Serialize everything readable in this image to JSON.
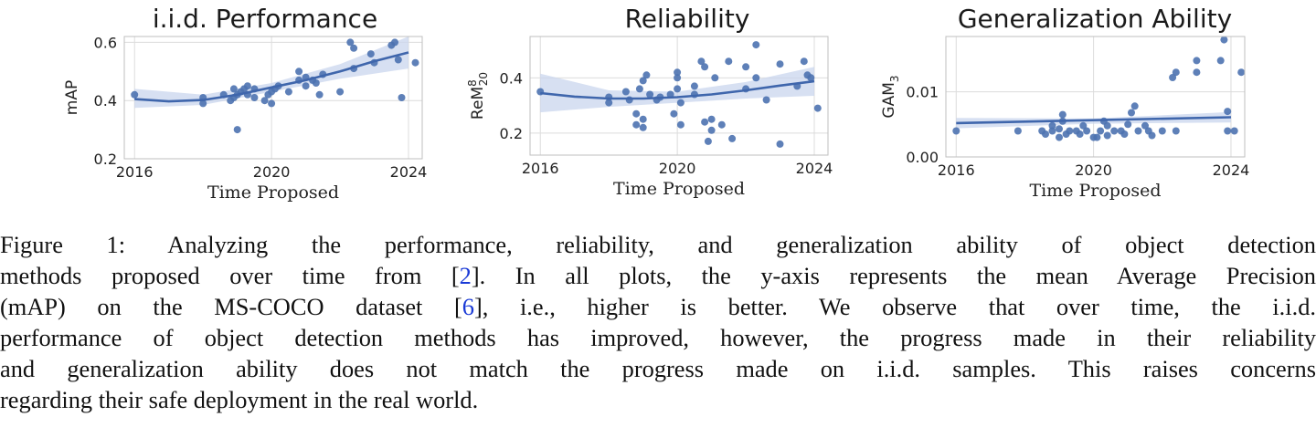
{
  "chart_data": [
    {
      "type": "scatter",
      "title": "i.i.d. Performance",
      "xlabel": "Time Proposed",
      "ylabel": "mAP",
      "xlim": [
        2015.7,
        2024.4
      ],
      "ylim": [
        0.2,
        0.62
      ],
      "xticks": [
        2016,
        2020,
        2024
      ],
      "xtick_labels": [
        "2016",
        "2020",
        "2024"
      ],
      "yticks": [
        0.2,
        0.4,
        0.6
      ],
      "ytick_labels": [
        "0.2",
        "0.4",
        "0.6"
      ],
      "grid": true,
      "fit": "quadratic",
      "fit_line": {
        "x": [
          2016,
          2017,
          2018,
          2019,
          2020,
          2021,
          2022,
          2023,
          2024
        ],
        "y": [
          0.405,
          0.397,
          0.402,
          0.42,
          0.445,
          0.47,
          0.5,
          0.535,
          0.565
        ]
      },
      "ci_band": {
        "x": [
          2016,
          2018,
          2020,
          2022,
          2024
        ],
        "lower": [
          0.375,
          0.385,
          0.43,
          0.475,
          0.51
        ],
        "upper": [
          0.44,
          0.42,
          0.46,
          0.525,
          0.62
        ]
      },
      "points": [
        {
          "x": 2016.0,
          "y": 0.42
        },
        {
          "x": 2018.0,
          "y": 0.39
        },
        {
          "x": 2018.0,
          "y": 0.41
        },
        {
          "x": 2018.6,
          "y": 0.42
        },
        {
          "x": 2018.8,
          "y": 0.4
        },
        {
          "x": 2018.9,
          "y": 0.41
        },
        {
          "x": 2018.9,
          "y": 0.44
        },
        {
          "x": 2019.0,
          "y": 0.3
        },
        {
          "x": 2019.0,
          "y": 0.42
        },
        {
          "x": 2019.1,
          "y": 0.43
        },
        {
          "x": 2019.2,
          "y": 0.44
        },
        {
          "x": 2019.3,
          "y": 0.45
        },
        {
          "x": 2019.3,
          "y": 0.42
        },
        {
          "x": 2019.5,
          "y": 0.41
        },
        {
          "x": 2019.5,
          "y": 0.44
        },
        {
          "x": 2019.8,
          "y": 0.4
        },
        {
          "x": 2019.9,
          "y": 0.42
        },
        {
          "x": 2020.0,
          "y": 0.43
        },
        {
          "x": 2020.0,
          "y": 0.39
        },
        {
          "x": 2020.1,
          "y": 0.44
        },
        {
          "x": 2020.2,
          "y": 0.45
        },
        {
          "x": 2020.5,
          "y": 0.43
        },
        {
          "x": 2020.8,
          "y": 0.5
        },
        {
          "x": 2020.8,
          "y": 0.47
        },
        {
          "x": 2021.0,
          "y": 0.48
        },
        {
          "x": 2021.0,
          "y": 0.45
        },
        {
          "x": 2021.2,
          "y": 0.47
        },
        {
          "x": 2021.3,
          "y": 0.46
        },
        {
          "x": 2021.4,
          "y": 0.42
        },
        {
          "x": 2021.5,
          "y": 0.49
        },
        {
          "x": 2022.0,
          "y": 0.43
        },
        {
          "x": 2022.3,
          "y": 0.6
        },
        {
          "x": 2022.4,
          "y": 0.58
        },
        {
          "x": 2022.4,
          "y": 0.51
        },
        {
          "x": 2022.9,
          "y": 0.56
        },
        {
          "x": 2023.0,
          "y": 0.53
        },
        {
          "x": 2023.5,
          "y": 0.59
        },
        {
          "x": 2023.6,
          "y": 0.6
        },
        {
          "x": 2023.7,
          "y": 0.54
        },
        {
          "x": 2023.8,
          "y": 0.41
        },
        {
          "x": 2024.2,
          "y": 0.53
        }
      ]
    },
    {
      "type": "scatter",
      "title": "Reliability",
      "xlabel": "Time Proposed",
      "ylabel": "ReM",
      "ylabel_sup": "8",
      "ylabel_sub": "20",
      "xlim": [
        2015.7,
        2024.4
      ],
      "ylim": [
        0.12,
        0.55
      ],
      "xticks": [
        2016,
        2020,
        2024
      ],
      "xtick_labels": [
        "2016",
        "2020",
        "2024"
      ],
      "yticks": [
        0.2,
        0.4
      ],
      "ytick_labels": [
        "0.2",
        "0.4"
      ],
      "grid": true,
      "fit": "quadratic",
      "fit_line": {
        "x": [
          2016,
          2017,
          2018,
          2019,
          2020,
          2021,
          2022,
          2023,
          2024
        ],
        "y": [
          0.345,
          0.332,
          0.325,
          0.325,
          0.33,
          0.34,
          0.355,
          0.372,
          0.388
        ]
      },
      "ci_band": {
        "x": [
          2016,
          2018,
          2020,
          2022,
          2024
        ],
        "lower": [
          0.275,
          0.295,
          0.31,
          0.325,
          0.335
        ],
        "upper": [
          0.415,
          0.355,
          0.35,
          0.385,
          0.44
        ]
      },
      "points": [
        {
          "x": 2016.0,
          "y": 0.35
        },
        {
          "x": 2018.0,
          "y": 0.31
        },
        {
          "x": 2018.0,
          "y": 0.33
        },
        {
          "x": 2018.5,
          "y": 0.35
        },
        {
          "x": 2018.6,
          "y": 0.32
        },
        {
          "x": 2018.8,
          "y": 0.27
        },
        {
          "x": 2018.8,
          "y": 0.23
        },
        {
          "x": 2018.9,
          "y": 0.36
        },
        {
          "x": 2019.0,
          "y": 0.39
        },
        {
          "x": 2019.0,
          "y": 0.25
        },
        {
          "x": 2019.0,
          "y": 0.22
        },
        {
          "x": 2019.1,
          "y": 0.41
        },
        {
          "x": 2019.2,
          "y": 0.34
        },
        {
          "x": 2019.4,
          "y": 0.32
        },
        {
          "x": 2019.5,
          "y": 0.33
        },
        {
          "x": 2019.8,
          "y": 0.34
        },
        {
          "x": 2019.9,
          "y": 0.27
        },
        {
          "x": 2020.0,
          "y": 0.36
        },
        {
          "x": 2020.0,
          "y": 0.42
        },
        {
          "x": 2020.0,
          "y": 0.4
        },
        {
          "x": 2020.1,
          "y": 0.31
        },
        {
          "x": 2020.1,
          "y": 0.23
        },
        {
          "x": 2020.5,
          "y": 0.37
        },
        {
          "x": 2020.5,
          "y": 0.34
        },
        {
          "x": 2020.7,
          "y": 0.46
        },
        {
          "x": 2020.8,
          "y": 0.44
        },
        {
          "x": 2020.8,
          "y": 0.24
        },
        {
          "x": 2020.9,
          "y": 0.17
        },
        {
          "x": 2021.0,
          "y": 0.25
        },
        {
          "x": 2021.0,
          "y": 0.21
        },
        {
          "x": 2021.1,
          "y": 0.4
        },
        {
          "x": 2021.3,
          "y": 0.23
        },
        {
          "x": 2021.5,
          "y": 0.46
        },
        {
          "x": 2021.6,
          "y": 0.18
        },
        {
          "x": 2022.0,
          "y": 0.36
        },
        {
          "x": 2022.0,
          "y": 0.44
        },
        {
          "x": 2022.3,
          "y": 0.4
        },
        {
          "x": 2022.3,
          "y": 0.52
        },
        {
          "x": 2022.6,
          "y": 0.32
        },
        {
          "x": 2023.0,
          "y": 0.45
        },
        {
          "x": 2023.0,
          "y": 0.16
        },
        {
          "x": 2023.5,
          "y": 0.37
        },
        {
          "x": 2023.7,
          "y": 0.46
        },
        {
          "x": 2023.8,
          "y": 0.41
        },
        {
          "x": 2023.9,
          "y": 0.4
        },
        {
          "x": 2024.1,
          "y": 0.29
        }
      ]
    },
    {
      "type": "scatter",
      "title": "Generalization Ability",
      "xlabel": "Time Proposed",
      "ylabel": "GAM",
      "ylabel_sub": "3",
      "xlim": [
        2015.7,
        2024.4
      ],
      "ylim": [
        0.0,
        0.0185
      ],
      "xticks": [
        2016,
        2020,
        2024
      ],
      "xtick_labels": [
        "2016",
        "2020",
        "2024"
      ],
      "yticks": [
        0.0,
        0.01
      ],
      "ytick_labels": [
        "0.00",
        "0.01"
      ],
      "grid": true,
      "fit": "linear",
      "fit_line": {
        "x": [
          2016,
          2024
        ],
        "y": [
          0.0052,
          0.0061
        ]
      },
      "ci_band": {
        "x": [
          2016,
          2020,
          2024
        ],
        "lower": [
          0.0044,
          0.0051,
          0.0053
        ],
        "upper": [
          0.006,
          0.0059,
          0.0069
        ]
      },
      "points": [
        {
          "x": 2016.0,
          "y": 0.004
        },
        {
          "x": 2017.8,
          "y": 0.004
        },
        {
          "x": 2018.5,
          "y": 0.004
        },
        {
          "x": 2018.6,
          "y": 0.0035
        },
        {
          "x": 2018.8,
          "y": 0.004
        },
        {
          "x": 2018.8,
          "y": 0.0048
        },
        {
          "x": 2019.0,
          "y": 0.003
        },
        {
          "x": 2019.0,
          "y": 0.0043
        },
        {
          "x": 2019.1,
          "y": 0.0055
        },
        {
          "x": 2019.1,
          "y": 0.0065
        },
        {
          "x": 2019.2,
          "y": 0.0035
        },
        {
          "x": 2019.3,
          "y": 0.004
        },
        {
          "x": 2019.5,
          "y": 0.004
        },
        {
          "x": 2019.6,
          "y": 0.0035
        },
        {
          "x": 2019.7,
          "y": 0.0048
        },
        {
          "x": 2019.8,
          "y": 0.004
        },
        {
          "x": 2020.0,
          "y": 0.003
        },
        {
          "x": 2020.1,
          "y": 0.003
        },
        {
          "x": 2020.2,
          "y": 0.004
        },
        {
          "x": 2020.3,
          "y": 0.0055
        },
        {
          "x": 2020.4,
          "y": 0.0048
        },
        {
          "x": 2020.4,
          "y": 0.0033
        },
        {
          "x": 2020.6,
          "y": 0.004
        },
        {
          "x": 2020.8,
          "y": 0.004
        },
        {
          "x": 2020.9,
          "y": 0.0035
        },
        {
          "x": 2021.0,
          "y": 0.005
        },
        {
          "x": 2021.1,
          "y": 0.0068
        },
        {
          "x": 2021.2,
          "y": 0.0078
        },
        {
          "x": 2021.3,
          "y": 0.004
        },
        {
          "x": 2021.5,
          "y": 0.0048
        },
        {
          "x": 2021.6,
          "y": 0.004
        },
        {
          "x": 2021.7,
          "y": 0.0033
        },
        {
          "x": 2022.0,
          "y": 0.004
        },
        {
          "x": 2022.3,
          "y": 0.0122
        },
        {
          "x": 2022.4,
          "y": 0.013
        },
        {
          "x": 2022.4,
          "y": 0.004
        },
        {
          "x": 2023.0,
          "y": 0.0148
        },
        {
          "x": 2023.0,
          "y": 0.013
        },
        {
          "x": 2023.7,
          "y": 0.0148
        },
        {
          "x": 2023.8,
          "y": 0.018
        },
        {
          "x": 2023.9,
          "y": 0.004
        },
        {
          "x": 2023.9,
          "y": 0.007
        },
        {
          "x": 2024.1,
          "y": 0.004
        },
        {
          "x": 2024.3,
          "y": 0.013
        }
      ]
    }
  ],
  "caption": {
    "line1": "Figure 1: Analyzing the performance, reliability, and generalization ability of object detection",
    "line2_pre": "methods proposed over time from [",
    "cite_a": "2",
    "line2_post": "]. In all plots, the y-axis represents the mean Average Precision",
    "line3_pre": "(mAP) on the MS-COCO dataset [",
    "cite_b": "6",
    "line3_post": "], i.e., higher is better.  We observe that over time, the i.i.d.",
    "line4": "performance of object detection methods has improved, however, the progress made in their reliability",
    "line5": "and generalization ability does not match the progress made on i.i.d. samples. This raises concerns",
    "line6": "regarding their safe deployment in the real world."
  },
  "colors": {
    "point": "#4c72b0",
    "line": "#3f66ac",
    "band": "#c9d6ee",
    "grid": "#dcdcdc",
    "frame": "#bfbfbf"
  }
}
